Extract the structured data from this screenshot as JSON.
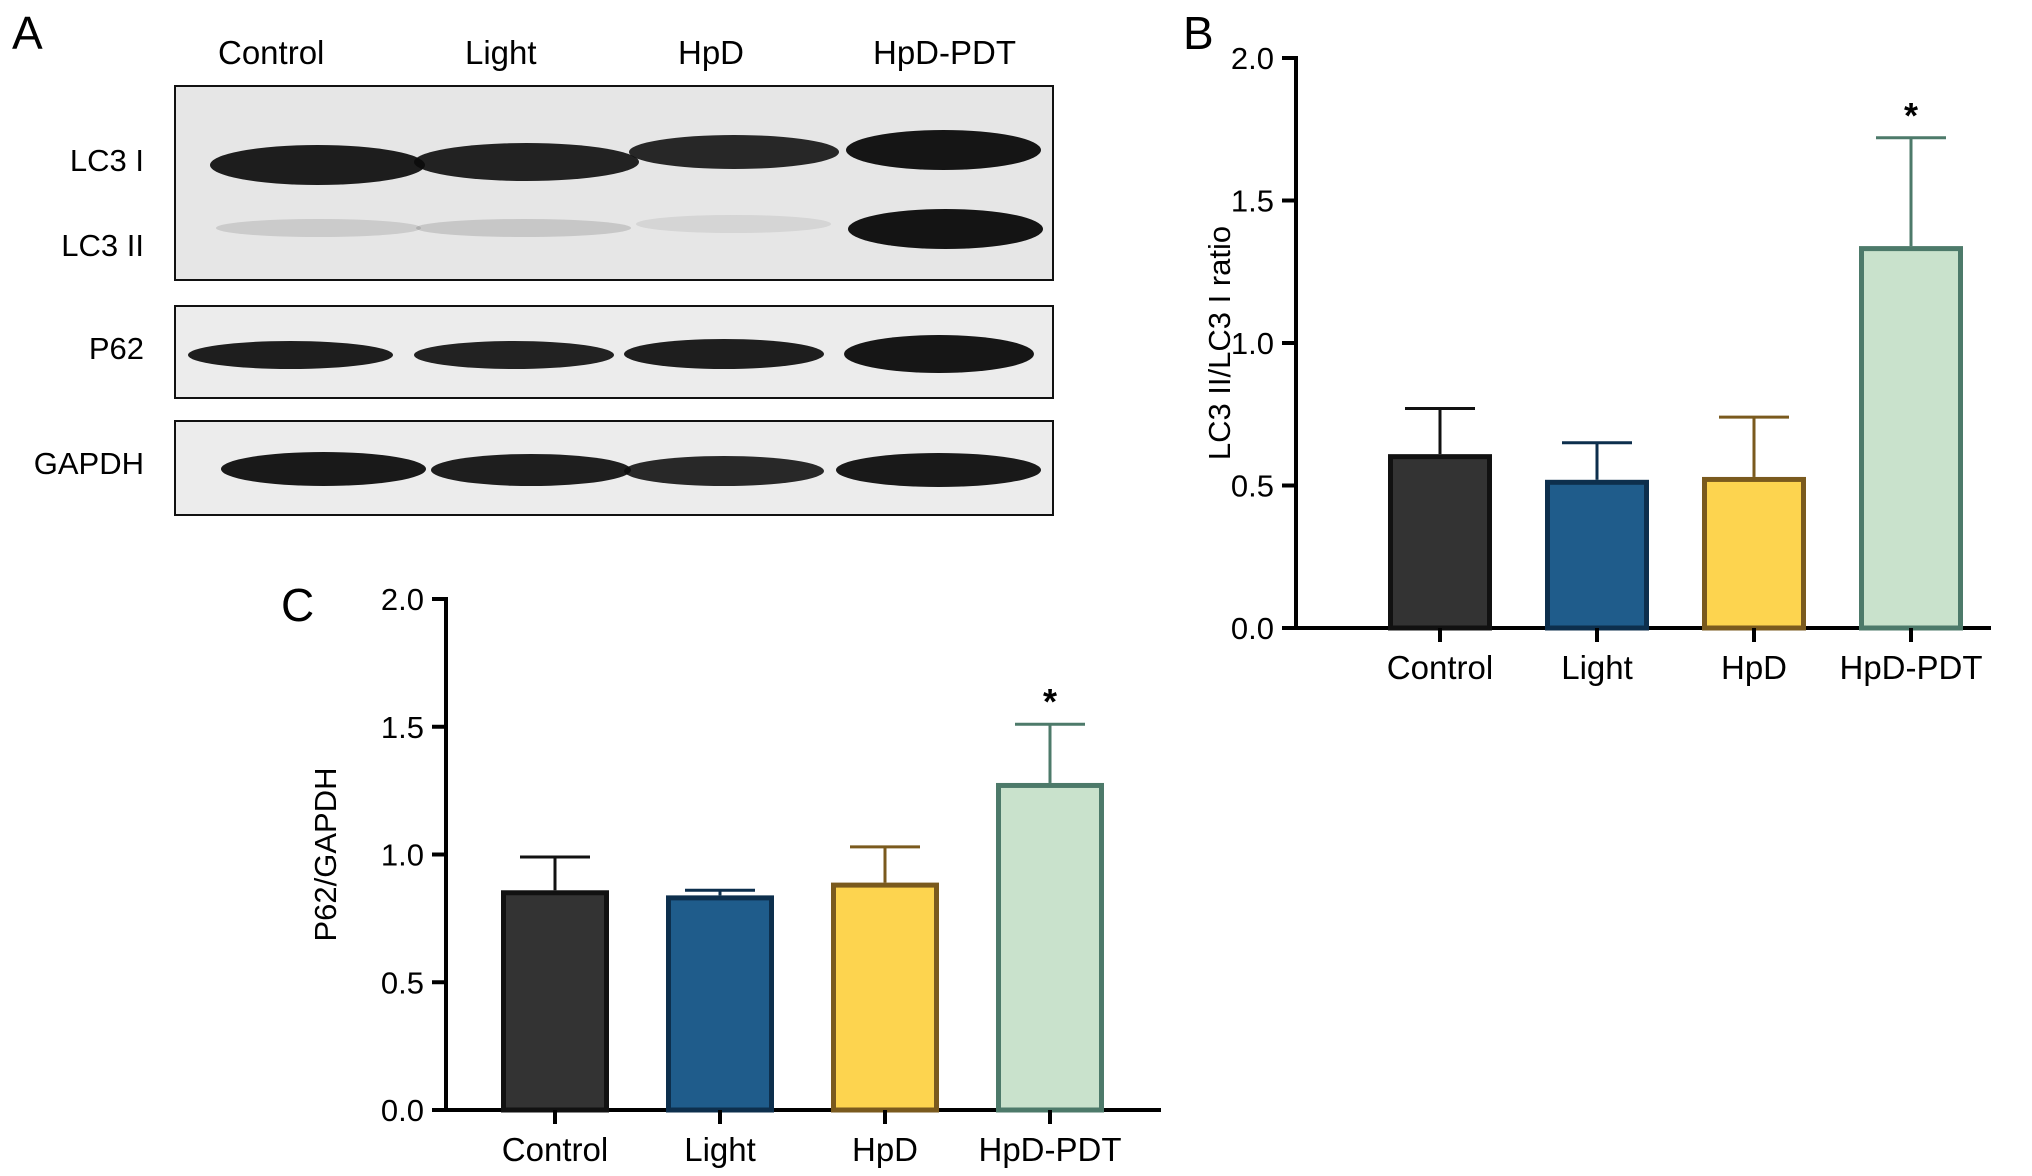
{
  "panels": {
    "a": {
      "letter": "A"
    },
    "b": {
      "letter": "B"
    },
    "c": {
      "letter": "C"
    }
  },
  "blot": {
    "lanes": [
      "Control",
      "Light",
      "HpD",
      "HpD-PDT"
    ],
    "rows": [
      "LC3 I",
      "LC3 II",
      "P62",
      "GAPDH"
    ]
  },
  "chart_data": [
    {
      "panel": "B",
      "type": "bar",
      "categories": [
        "Control",
        "Light",
        "HpD",
        "HpD-PDT"
      ],
      "values": [
        0.61,
        0.52,
        0.53,
        1.34
      ],
      "errors": [
        0.16,
        0.13,
        0.21,
        0.38
      ],
      "significance": [
        "",
        "",
        "",
        "*"
      ],
      "ylabel": "LC3 II/LC3 I ratio",
      "ylim": [
        0,
        2.0
      ],
      "yticks": [
        "0.0",
        "0.5",
        "1.0",
        "1.5",
        "2.0"
      ],
      "fills": [
        "#333333",
        "#1f5c8b",
        "#fdd44f",
        "#c9e2cc"
      ],
      "strokes": [
        "#111111",
        "#0d2f4d",
        "#7a5a1e",
        "#4d7a6a"
      ]
    },
    {
      "panel": "C",
      "type": "bar",
      "categories": [
        "Control",
        "Light",
        "HpD",
        "HpD-PDT"
      ],
      "values": [
        0.86,
        0.84,
        0.89,
        1.28
      ],
      "errors": [
        0.13,
        0.02,
        0.14,
        0.23
      ],
      "significance": [
        "",
        "",
        "",
        "*"
      ],
      "ylabel": "P62/GAPDH",
      "ylim": [
        0,
        2.0
      ],
      "yticks": [
        "0.0",
        "0.5",
        "1.0",
        "1.5",
        "2.0"
      ],
      "fills": [
        "#333333",
        "#1f5c8b",
        "#fdd44f",
        "#c9e2cc"
      ],
      "strokes": [
        "#111111",
        "#0d2f4d",
        "#7a5a1e",
        "#4d7a6a"
      ]
    }
  ]
}
